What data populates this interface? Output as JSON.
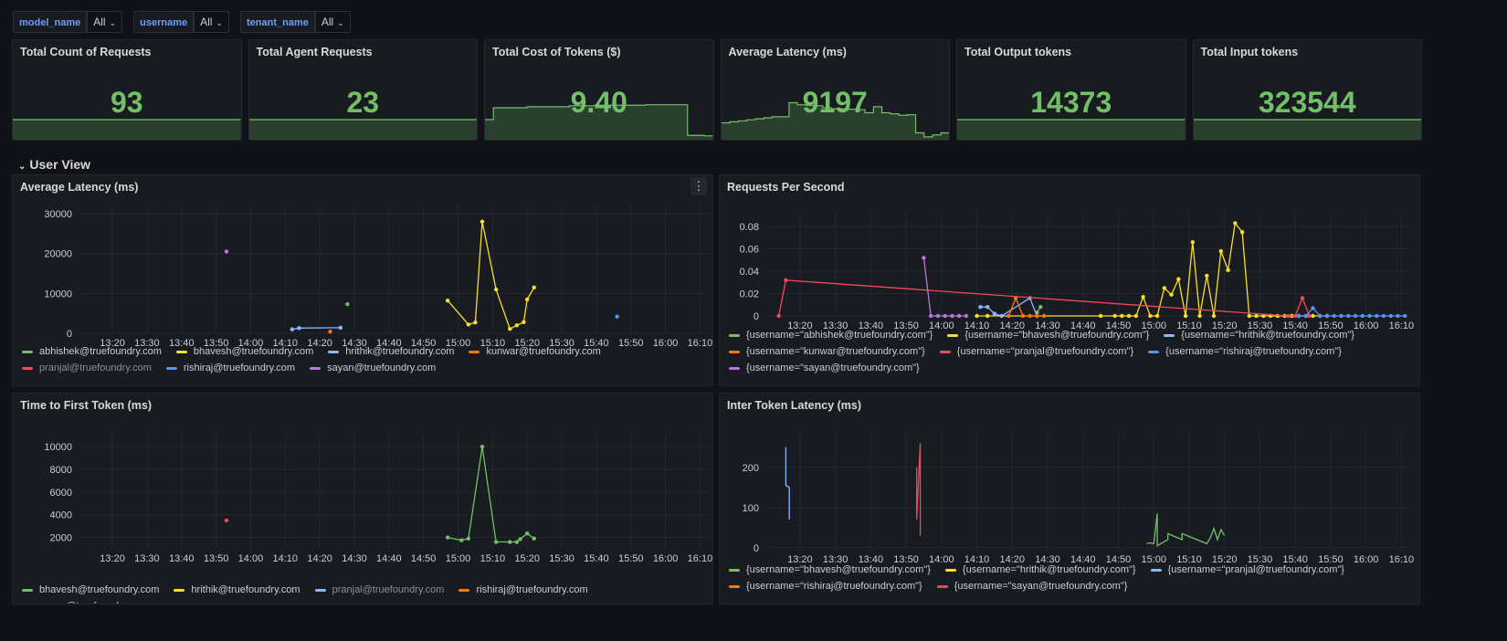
{
  "variables": [
    {
      "label": "model_name",
      "value": "All"
    },
    {
      "label": "username",
      "value": "All"
    },
    {
      "label": "tenant_name",
      "value": "All"
    }
  ],
  "stats": [
    {
      "title": "Total Count of Requests",
      "value": "93",
      "spark": [
        0,
        0,
        0,
        0,
        0,
        0,
        0,
        0,
        0,
        0
      ]
    },
    {
      "title": "Total Agent Requests",
      "value": "23",
      "spark": [
        0,
        0,
        0,
        0,
        0,
        0,
        0,
        0,
        0,
        0
      ]
    },
    {
      "title": "Total Cost of Tokens ($)",
      "value": "9.40",
      "spark": [
        0,
        0.6,
        0.6,
        0.6,
        0.6,
        0.62,
        0.62,
        0.62,
        0.62,
        0.62,
        0.64,
        0.64,
        0.64,
        0.65,
        0.65,
        0.65,
        0.65,
        0.65,
        0.65,
        0.66,
        0.66,
        0.66,
        0.66,
        0.66,
        0.05,
        0.05,
        0.04,
        0.04
      ]
    },
    {
      "title": "Average Latency (ms)",
      "value": "9197",
      "spark": [
        0.3,
        0.32,
        0.34,
        0.36,
        0.38,
        0.4,
        0.42,
        0.42,
        0.7,
        0.66,
        0.65,
        0.64,
        0.6,
        0.58,
        0.58,
        0.57,
        0.56,
        0.5,
        0.62,
        0.5,
        0.48,
        0.45,
        0.46,
        0.1,
        0.02,
        0.06,
        0.1,
        0.12
      ]
    },
    {
      "title": "Total Output tokens",
      "value": "14373",
      "spark": [
        0,
        0,
        0,
        0,
        0,
        0,
        0,
        0,
        0,
        0
      ]
    },
    {
      "title": "Total Input tokens",
      "value": "323544",
      "spark": [
        0,
        0,
        0,
        0,
        0,
        0,
        0,
        0,
        0,
        0
      ]
    }
  ],
  "row_title": "User View",
  "colors": {
    "green": "#73bf69",
    "yellow": "#fade2a",
    "blue": "#8ab8ff",
    "orange": "#ff780a",
    "red": "#f2495c",
    "darkblue": "#5794f2",
    "purple": "#b877d9"
  },
  "time_ticks": [
    "13:20",
    "13:30",
    "13:40",
    "13:50",
    "14:00",
    "14:10",
    "14:20",
    "14:30",
    "14:40",
    "14:50",
    "15:00",
    "15:10",
    "15:20",
    "15:30",
    "15:40",
    "15:50",
    "16:00",
    "16:10"
  ],
  "charts": [
    {
      "title": "Average Latency (ms)",
      "has_menu": true,
      "chart_data": {
        "type": "line",
        "title": "Average Latency (ms)",
        "y_ticks": [
          "0",
          "10000",
          "20000",
          "30000"
        ],
        "ylim": [
          0,
          30000
        ],
        "xlim": [
          "13:11",
          "16:12"
        ],
        "series": [
          {
            "name": "abhishek@truefoundry.com",
            "color": "green",
            "points": [
              [
                "14:28",
                7300
              ]
            ]
          },
          {
            "name": "bhavesh@truefoundry.com",
            "color": "yellow",
            "points": [
              [
                "14:57",
                8200
              ],
              [
                "15:03",
                2200
              ],
              [
                "15:05",
                2700
              ],
              [
                "15:07",
                28000
              ],
              [
                "15:11",
                11000
              ],
              [
                "15:15",
                1100
              ],
              [
                "15:17",
                2000
              ],
              [
                "15:19",
                2800
              ],
              [
                "15:20",
                8500
              ],
              [
                "15:22",
                11500
              ]
            ]
          },
          {
            "name": "hrithik@truefoundry.com",
            "color": "blue",
            "points": [
              [
                "14:12",
                1000
              ],
              [
                "14:14",
                1300
              ],
              [
                "14:26",
                1400
              ]
            ]
          },
          {
            "name": "kunwar@truefoundry.com",
            "color": "orange",
            "points": [
              [
                "14:23",
                400
              ]
            ]
          },
          {
            "name": "pranjal@truefoundry.com",
            "color": "red",
            "points": [],
            "dim": true
          },
          {
            "name": "rishiraj@truefoundry.com",
            "color": "darkblue",
            "points": [
              [
                "15:46",
                4200
              ]
            ]
          },
          {
            "name": "sayan@truefoundry.com",
            "color": "purple",
            "points": [
              [
                "13:53",
                20500
              ]
            ]
          }
        ]
      }
    },
    {
      "title": "Requests Per Second",
      "has_menu": false,
      "chart_data": {
        "type": "line",
        "title": "Requests Per Second",
        "y_ticks": [
          "0",
          "0.02",
          "0.04",
          "0.06",
          "0.08"
        ],
        "ylim": [
          0,
          0.085
        ],
        "xlim": [
          "13:11",
          "16:13"
        ],
        "series": [
          {
            "name": "{username=\"abhishek@truefoundry.com\"}",
            "color": "green",
            "points": [
              [
                "14:27",
                0.003
              ],
              [
                "14:28",
                0.008
              ]
            ]
          },
          {
            "name": "{username=\"bhavesh@truefoundry.com\"}",
            "color": "yellow",
            "points": [
              [
                "14:10",
                0
              ],
              [
                "14:13",
                0
              ],
              [
                "14:45",
                0
              ],
              [
                "14:49",
                0
              ],
              [
                "14:51",
                0
              ],
              [
                "14:53",
                0
              ],
              [
                "14:55",
                0
              ],
              [
                "14:57",
                0.017
              ],
              [
                "14:59",
                0
              ],
              [
                "15:01",
                0
              ],
              [
                "15:03",
                0.025
              ],
              [
                "15:05",
                0.019
              ],
              [
                "15:07",
                0.033
              ],
              [
                "15:09",
                0
              ],
              [
                "15:11",
                0.066
              ],
              [
                "15:13",
                0
              ],
              [
                "15:15",
                0.036
              ],
              [
                "15:17",
                0
              ],
              [
                "15:19",
                0.058
              ],
              [
                "15:21",
                0.041
              ],
              [
                "15:23",
                0.083
              ],
              [
                "15:25",
                0.075
              ],
              [
                "15:27",
                0
              ],
              [
                "15:29",
                0
              ],
              [
                "15:31",
                0
              ],
              [
                "15:33",
                0
              ],
              [
                "15:35",
                0
              ],
              [
                "15:37",
                0
              ],
              [
                "15:39",
                0
              ],
              [
                "15:41",
                0
              ],
              [
                "15:43",
                0
              ],
              [
                "15:45",
                0
              ],
              [
                "15:47",
                0
              ],
              [
                "15:49",
                0
              ]
            ]
          },
          {
            "name": "{username=\"hrithik@truefoundry.com\"}",
            "color": "blue",
            "points": [
              [
                "14:11",
                0.008
              ],
              [
                "14:13",
                0.008
              ],
              [
                "14:15",
                0.002
              ],
              [
                "14:17",
                0
              ],
              [
                "14:25",
                0.016
              ],
              [
                "14:27",
                0
              ]
            ]
          },
          {
            "name": "{username=\"kunwar@truefoundry.com\"}",
            "color": "orange",
            "points": [
              [
                "14:19",
                0
              ],
              [
                "14:21",
                0.016
              ],
              [
                "14:23",
                0
              ],
              [
                "14:25",
                0
              ],
              [
                "14:27",
                0
              ],
              [
                "14:29",
                0
              ]
            ]
          },
          {
            "name": "{username=\"pranjal@truefoundry.com\"}",
            "color": "red",
            "points": [
              [
                "13:14",
                0
              ],
              [
                "13:16",
                0.032
              ],
              [
                "15:38",
                0
              ],
              [
                "15:40",
                0
              ],
              [
                "15:42",
                0.016
              ],
              [
                "15:44",
                0
              ]
            ]
          },
          {
            "name": "{username=\"rishiraj@truefoundry.com\"}",
            "color": "darkblue",
            "points": [
              [
                "15:41",
                0
              ],
              [
                "15:43",
                0
              ],
              [
                "15:45",
                0.007
              ],
              [
                "15:47",
                0
              ],
              [
                "15:49",
                0
              ],
              [
                "15:51",
                0
              ],
              [
                "15:53",
                0
              ],
              [
                "15:55",
                0
              ],
              [
                "15:57",
                0
              ],
              [
                "15:59",
                0
              ],
              [
                "16:01",
                0
              ],
              [
                "16:03",
                0
              ],
              [
                "16:05",
                0
              ],
              [
                "16:07",
                0
              ],
              [
                "16:09",
                0
              ],
              [
                "16:11",
                0
              ]
            ]
          },
          {
            "name": "{username=\"sayan@truefoundry.com\"}",
            "color": "purple",
            "points": [
              [
                "13:55",
                0.052
              ],
              [
                "13:57",
                0
              ],
              [
                "13:59",
                0
              ],
              [
                "14:01",
                0
              ],
              [
                "14:03",
                0
              ],
              [
                "14:05",
                0
              ],
              [
                "14:07",
                0
              ]
            ]
          }
        ]
      }
    },
    {
      "title": "Time to First Token (ms)",
      "has_menu": false,
      "chart_data": {
        "type": "line",
        "title": "Time to First Token (ms)",
        "y_ticks": [
          "2000",
          "4000",
          "6000",
          "8000",
          "10000"
        ],
        "ylim": [
          1000,
          10500
        ],
        "xlim": [
          "13:11",
          "16:12"
        ],
        "series": [
          {
            "name": "bhavesh@truefoundry.com",
            "color": "green",
            "points": [
              [
                "14:57",
                2000
              ],
              [
                "15:01",
                1750
              ],
              [
                "15:03",
                1900
              ],
              [
                "15:07",
                10000
              ],
              [
                "15:11",
                1600
              ],
              [
                "15:15",
                1600
              ],
              [
                "15:17",
                1600
              ],
              [
                "15:18",
                1850
              ],
              [
                "15:20",
                2350
              ],
              [
                "15:22",
                1900
              ]
            ]
          },
          {
            "name": "hrithik@truefoundry.com",
            "color": "yellow",
            "points": []
          },
          {
            "name": "pranjal@truefoundry.com",
            "color": "blue",
            "points": [],
            "dim": true
          },
          {
            "name": "rishiraj@truefoundry.com",
            "color": "orange",
            "points": []
          },
          {
            "name": "sayan@truefoundry.com",
            "color": "red",
            "points": [
              [
                "13:53",
                3500
              ]
            ]
          }
        ]
      }
    },
    {
      "title": "Inter Token Latency (ms)",
      "has_menu": false,
      "chart_data": {
        "type": "line",
        "title": "Inter Token Latency (ms)",
        "y_ticks": [
          "0",
          "100",
          "200"
        ],
        "ylim": [
          -5,
          270
        ],
        "xlim": [
          "13:11",
          "16:13"
        ],
        "series": [
          {
            "name": "{username=\"bhavesh@truefoundry.com\"}",
            "color": "green",
            "points": [
              [
                "14:58",
                10
              ],
              [
                "14:59",
                12
              ],
              [
                "15:00",
                10
              ],
              [
                "15:01",
                85
              ],
              [
                "15:01",
                5
              ],
              [
                "15:04",
                20
              ],
              [
                "15:04",
                35
              ],
              [
                "15:08",
                20
              ],
              [
                "15:08",
                35
              ],
              [
                "15:15",
                10
              ],
              [
                "15:16",
                25
              ],
              [
                "15:17",
                48
              ],
              [
                "15:18",
                20
              ],
              [
                "15:19",
                45
              ],
              [
                "15:20",
                30
              ]
            ]
          },
          {
            "name": "{username=\"hrithik@truefoundry.com\"}",
            "color": "yellow",
            "points": []
          },
          {
            "name": "{username=\"pranjal@truefoundry.com\"}",
            "color": "blue",
            "points": [
              [
                "13:16",
                250
              ],
              [
                "13:16",
                155
              ],
              [
                "13:17",
                150
              ],
              [
                "13:17",
                70
              ]
            ]
          },
          {
            "name": "{username=\"rishiraj@truefoundry.com\"}",
            "color": "orange",
            "points": []
          },
          {
            "name": "{username=\"sayan@truefoundry.com\"}",
            "color": "red",
            "points": [
              [
                "13:53",
                200
              ],
              [
                "13:53",
                70
              ],
              [
                "13:54",
                260
              ],
              [
                "13:54",
                30
              ]
            ]
          }
        ]
      }
    }
  ]
}
